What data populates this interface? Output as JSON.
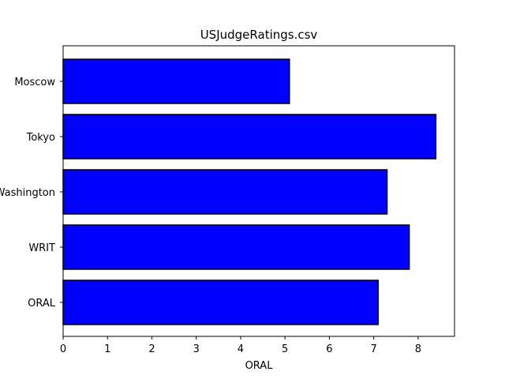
{
  "chart_data": {
    "type": "bar",
    "orientation": "horizontal",
    "title": "USJudgeRatings.csv",
    "xlabel": "ORAL",
    "ylabel": "",
    "categories": [
      "Moscow",
      "Tokyo",
      "Washington",
      "WRIT",
      "ORAL"
    ],
    "values": [
      5.1,
      8.4,
      7.3,
      7.8,
      7.1
    ],
    "xlim": [
      0,
      8.82
    ],
    "xticks": [
      "0",
      "1",
      "2",
      "3",
      "4",
      "5",
      "6",
      "7",
      "8"
    ],
    "grid": false,
    "legend": "none",
    "bar_color": "#0000ff",
    "edge_color": "#000000"
  }
}
